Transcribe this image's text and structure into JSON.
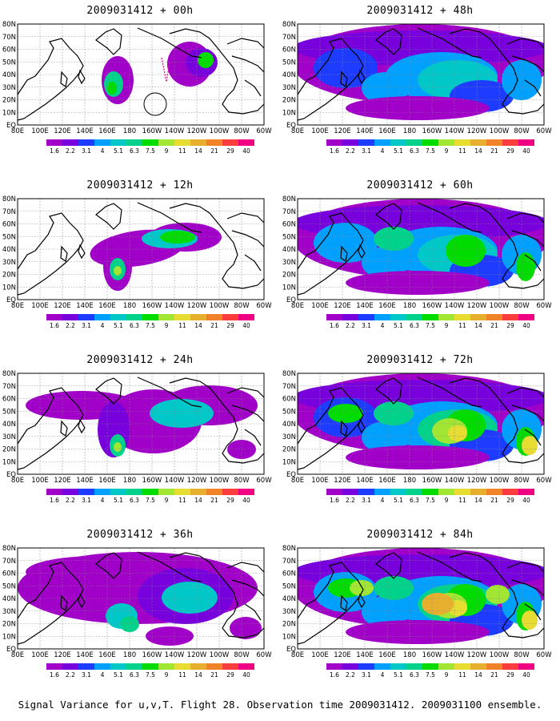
{
  "caption": "Signal Variance for u,v,T. Flight 28. Observation time 2009031412. 2009031100 ensemble.",
  "lat_labels": [
    "80N",
    "70N",
    "60N",
    "50N",
    "40N",
    "30N",
    "20N",
    "10N",
    "EQ"
  ],
  "lon_labels": [
    "80E",
    "100E",
    "120E",
    "140E",
    "160E",
    "180",
    "160W",
    "140W",
    "120W",
    "100W",
    "80W",
    "60W"
  ],
  "colorbar": {
    "labels": [
      "1.6",
      "2.2",
      "3.1",
      "4",
      "5.1",
      "6.3",
      "7.5",
      "9",
      "11",
      "14",
      "21",
      "29",
      "40"
    ],
    "colors": [
      "#a000c8",
      "#7800dc",
      "#1e3cff",
      "#00a0ff",
      "#00c8c8",
      "#00d28c",
      "#00dc00",
      "#a0e632",
      "#e6dc32",
      "#e6af2d",
      "#f08228",
      "#fa3c3c",
      "#f00082"
    ]
  },
  "panels": [
    {
      "title": "2009031412 + 00h",
      "level": 0
    },
    {
      "title": "2009031412 + 48h",
      "level": 4
    },
    {
      "title": "2009031412 + 12h",
      "level": 1
    },
    {
      "title": "2009031412 + 60h",
      "level": 5
    },
    {
      "title": "2009031412 + 24h",
      "level": 2
    },
    {
      "title": "2009031412 + 72h",
      "level": 6
    },
    {
      "title": "2009031412 + 36h",
      "level": 3
    },
    {
      "title": "2009031412 + 84h",
      "level": 7
    }
  ]
}
